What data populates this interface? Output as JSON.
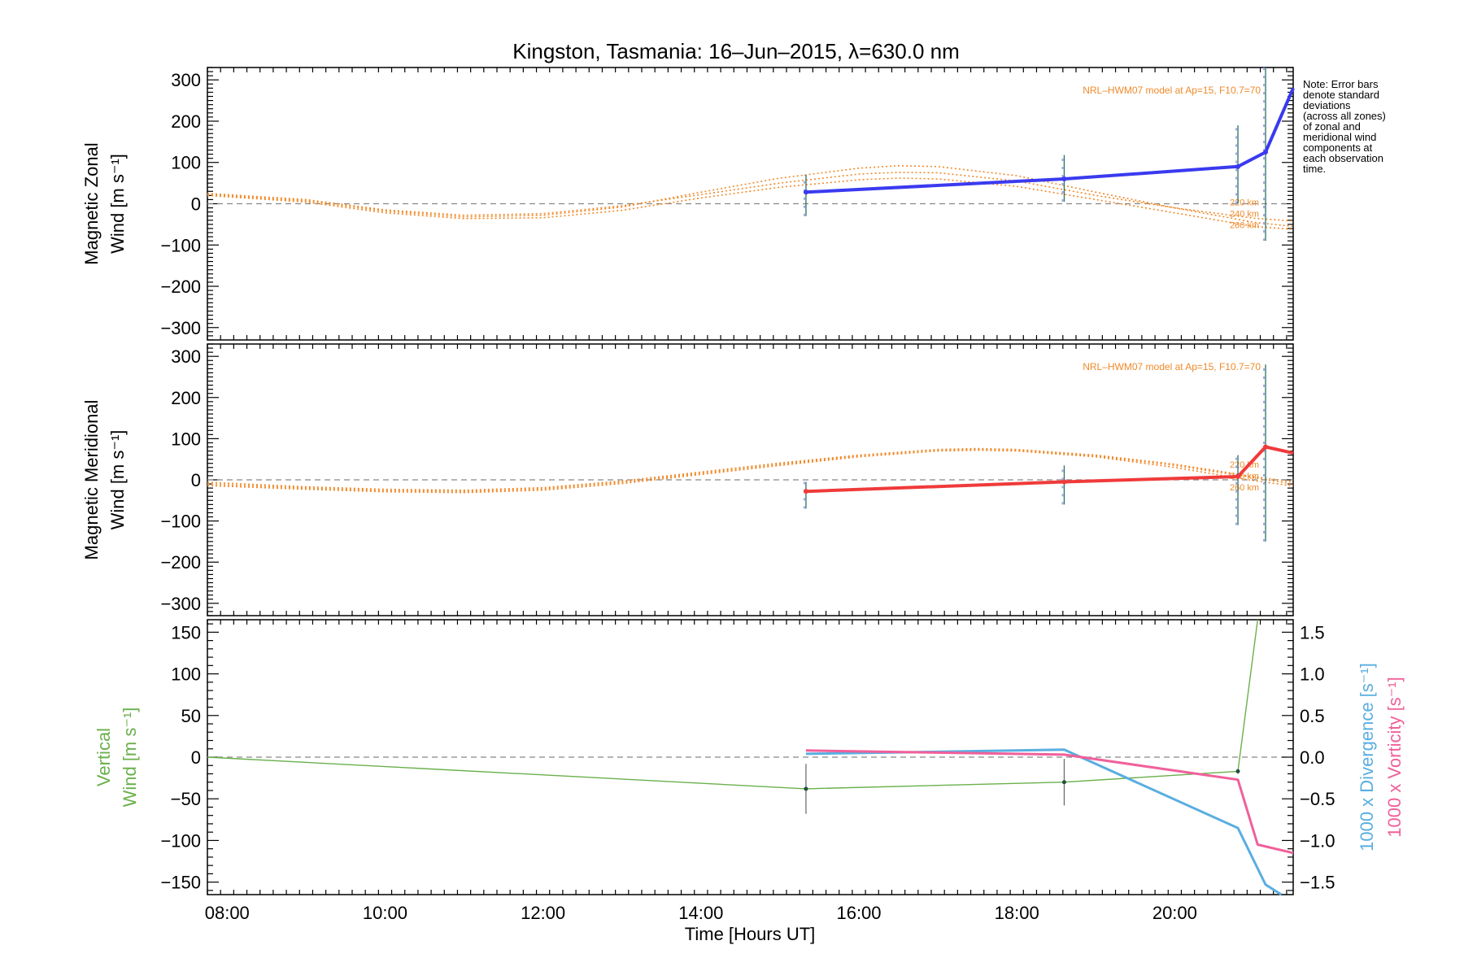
{
  "title": "Kingston, Tasmania: 16–Jun–2015, λ=630.0 nm",
  "note_lines": [
    "Note: Error bars",
    "denote standard",
    "deviations",
    "(across all zones)",
    "of zonal and",
    "meridional wind",
    "components at",
    "each observation",
    "time."
  ],
  "colors": {
    "zonal": "#3a3af0",
    "meridional": "#f03a3a",
    "model": "#f08a2a",
    "vertical": "#6ab04c",
    "divergence": "#5aaee0",
    "vorticity": "#f0609a",
    "axis": "#000000",
    "zero_line": "#888888"
  },
  "chart_data": [
    {
      "type": "line",
      "panel": "zonal",
      "ylabel_lines": [
        "Magnetic Zonal",
        "Wind [m s⁻¹]"
      ],
      "ylim": [
        -330,
        330
      ],
      "yticks": [
        -300,
        -200,
        -100,
        0,
        100,
        200,
        300
      ],
      "ytick_labels": [
        "−300",
        "−200",
        "−100",
        "0",
        "100",
        "200",
        "300"
      ],
      "xlim": [
        7.75,
        21.5
      ],
      "model_label": "NRL–HWM07 model at Ap=15, F10.7=70",
      "altitude_labels": [
        "220 km",
        "240 km",
        "260 km"
      ],
      "observed": {
        "x": [
          15.33,
          18.6,
          20.8,
          21.15,
          21.5
        ],
        "y": [
          28,
          60,
          90,
          125,
          280
        ],
        "err_low": [
          -30,
          5,
          0,
          -90
        ],
        "err_high": [
          70,
          118,
          190,
          330
        ]
      },
      "model_series": [
        {
          "x": [
            7.75,
            9,
            10,
            11,
            12,
            13,
            14,
            15,
            16,
            16.5,
            17,
            18,
            19,
            20,
            21,
            21.5
          ],
          "y": [
            25,
            10,
            -15,
            -28,
            -24,
            -5,
            22,
            50,
            72,
            76,
            75,
            55,
            20,
            -10,
            -35,
            -42
          ]
        },
        {
          "x": [
            7.75,
            9,
            10,
            11,
            12,
            13,
            14,
            15,
            16,
            16.5,
            17,
            18,
            19,
            20,
            21,
            21.5
          ],
          "y": [
            22,
            7,
            -18,
            -32,
            -28,
            -8,
            28,
            62,
            86,
            92,
            90,
            68,
            28,
            -10,
            -45,
            -55
          ]
        },
        {
          "x": [
            7.75,
            9,
            10,
            11,
            12,
            13,
            14,
            15,
            16,
            16.5,
            17,
            18,
            19,
            20,
            21,
            21.5
          ],
          "y": [
            20,
            4,
            -22,
            -36,
            -34,
            -16,
            14,
            40,
            58,
            62,
            60,
            42,
            10,
            -22,
            -55,
            -62
          ]
        }
      ]
    },
    {
      "type": "line",
      "panel": "meridional",
      "ylabel_lines": [
        "Magnetic Meridional",
        "Wind [m s⁻¹]"
      ],
      "ylim": [
        -330,
        330
      ],
      "yticks": [
        -300,
        -200,
        -100,
        0,
        100,
        200,
        300
      ],
      "ytick_labels": [
        "−300",
        "−200",
        "−100",
        "0",
        "100",
        "200",
        "300"
      ],
      "xlim": [
        7.75,
        21.5
      ],
      "model_label": "NRL–HWM07 model at Ap=15, F10.7=70",
      "altitude_labels": [
        "220 km",
        "240 km",
        "260 km"
      ],
      "observed": {
        "x": [
          15.33,
          18.6,
          20.8,
          21.15,
          21.5
        ],
        "y": [
          -28,
          -5,
          8,
          80,
          65
        ],
        "err_low": [
          -70,
          -60,
          -110,
          -150
        ],
        "err_high": [
          -5,
          35,
          60,
          280
        ]
      },
      "model_series": [
        {
          "x": [
            7.75,
            9,
            10,
            11,
            12,
            13,
            14,
            15,
            16,
            17,
            17.5,
            18,
            19,
            20,
            21,
            21.5
          ],
          "y": [
            -10,
            -20,
            -26,
            -28,
            -22,
            -6,
            16,
            38,
            58,
            72,
            74,
            72,
            58,
            35,
            5,
            -10
          ]
        },
        {
          "x": [
            7.75,
            9,
            10,
            11,
            12,
            13,
            14,
            15,
            16,
            17,
            17.5,
            18,
            19,
            20,
            21,
            21.5
          ],
          "y": [
            -14,
            -23,
            -29,
            -31,
            -25,
            -9,
            13,
            35,
            56,
            70,
            72,
            70,
            56,
            30,
            -2,
            -15
          ]
        },
        {
          "x": [
            7.75,
            9,
            10,
            11,
            12,
            13,
            14,
            15,
            16,
            17,
            17.5,
            18,
            19,
            20,
            21,
            21.5
          ],
          "y": [
            -6,
            -17,
            -23,
            -25,
            -19,
            -3,
            19,
            41,
            60,
            74,
            76,
            74,
            60,
            38,
            8,
            -5
          ]
        }
      ]
    },
    {
      "type": "line",
      "panel": "vertical",
      "ylabel_lines": [
        "Vertical",
        "Wind [m s⁻¹]"
      ],
      "ylim": [
        -165,
        165
      ],
      "yticks": [
        -150,
        -100,
        -50,
        0,
        50,
        100,
        150
      ],
      "ytick_labels": [
        "−150",
        "−100",
        "−50",
        "0",
        "50",
        "100",
        "150"
      ],
      "xlim": [
        7.75,
        21.5
      ],
      "xticks": [
        8,
        10,
        12,
        14,
        16,
        18,
        20
      ],
      "xtick_labels": [
        "08:00",
        "10:00",
        "12:00",
        "14:00",
        "16:00",
        "18:00",
        "20:00"
      ],
      "xlabel": "Time [Hours UT]",
      "y2lim": [
        -1.65,
        1.65
      ],
      "y2ticks": [
        -1.5,
        -1.0,
        -0.5,
        0.0,
        0.5,
        1.0,
        1.5
      ],
      "y2tick_labels": [
        "−1.5",
        "−1.0",
        "−0.5",
        "0.0",
        "0.5",
        "1.0",
        "1.5"
      ],
      "y2label_divergence": "1000 x Divergence [s⁻¹]",
      "y2label_vorticity": "1000 x Vorticity [s⁻¹]",
      "vertical": {
        "x": [
          7.75,
          15.33,
          18.6,
          20.8,
          21.05
        ],
        "y": [
          0,
          -38,
          -30,
          -17,
          165
        ],
        "err_low": [
          -68,
          -58,
          -20
        ],
        "err_high": [
          -8,
          -2,
          -14
        ]
      },
      "divergence": {
        "x": [
          15.33,
          18.6,
          20.8,
          21.15,
          21.35
        ],
        "y": [
          0.04,
          0.09,
          -0.85,
          -1.53,
          -1.65
        ]
      },
      "vorticity": {
        "x": [
          15.33,
          18.6,
          20.8,
          21.05,
          21.5
        ],
        "y": [
          0.08,
          0.03,
          -0.27,
          -1.05,
          -1.15
        ]
      }
    }
  ]
}
